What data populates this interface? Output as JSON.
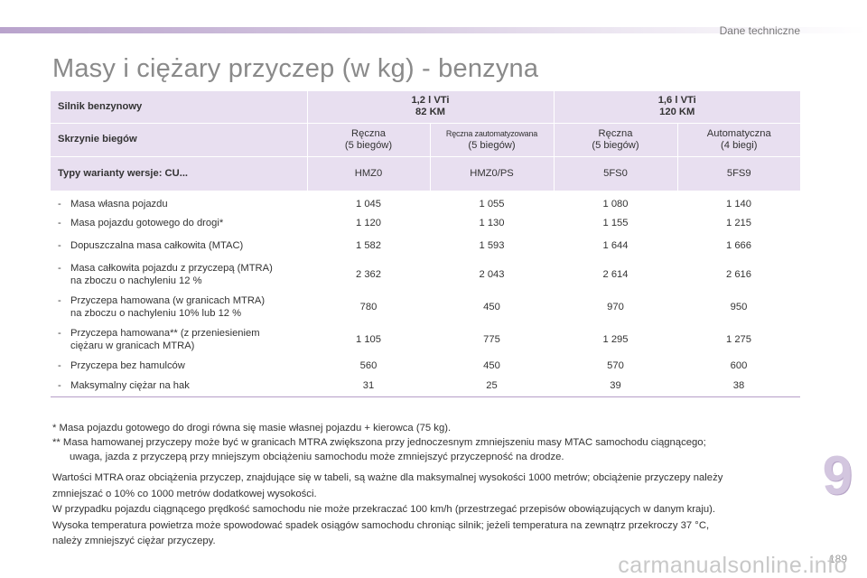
{
  "header": {
    "section": "Dane techniczne"
  },
  "title": "Masy i ciężary przyczep (w kg) - benzyna",
  "table": {
    "engine_label": "Silnik benzynowy",
    "engines": [
      {
        "line1": "1,2 l VTi",
        "line2": "82 KM"
      },
      {
        "line1": "1,6 l VTi",
        "line2": "120 KM"
      }
    ],
    "gearbox_label": "Skrzynie biegów",
    "gearboxes": [
      {
        "line1": "Ręczna",
        "line2": "(5 biegów)"
      },
      {
        "line1": "Ręczna zautomatyzowana",
        "line2": "(5 biegów)"
      },
      {
        "line1": "Ręczna",
        "line2": "(5 biegów)"
      },
      {
        "line1": "Automatyczna",
        "line2": "(4 biegi)"
      }
    ],
    "types_label": "Typy warianty wersje: CU...",
    "types": [
      "HMZ0",
      "HMZ0/PS",
      "5FS0",
      "5FS9"
    ],
    "rows": [
      {
        "dash": "-",
        "line1": "Masa własna pojazdu",
        "line2": "",
        "values": [
          "1 045",
          "1 055",
          "1 080",
          "1 140"
        ]
      },
      {
        "dash": "-",
        "line1": "Masa pojazdu gotowego do drogi*",
        "line2": "",
        "values": [
          "1 120",
          "1 130",
          "1 155",
          "1 215"
        ]
      },
      {
        "dash": "-",
        "line1": "Dopuszczalna masa całkowita (MTAC)",
        "line2": "",
        "values": [
          "1 582",
          "1 593",
          "1 644",
          "1 666"
        ]
      },
      {
        "dash": "-",
        "line1": "Masa całkowita pojazdu z przyczepą (MTRA)",
        "line2": "na zboczu o nachyleniu 12 %",
        "values": [
          "2 362",
          "2 043",
          "2 614",
          "2 616"
        ]
      },
      {
        "dash": "-",
        "line1": "Przyczepa hamowana (w granicach MTRA)",
        "line2": "na zboczu o nachyleniu 10% lub 12 %",
        "values": [
          "780",
          "450",
          "970",
          "950"
        ]
      },
      {
        "dash": "-",
        "line1": "Przyczepa hamowana** (z przeniesieniem",
        "line2": "ciężaru w granicach MTRA)",
        "values": [
          "1 105",
          "775",
          "1 295",
          "1 275"
        ]
      },
      {
        "dash": "-",
        "line1": "Przyczepa bez hamulców",
        "line2": "",
        "values": [
          "560",
          "450",
          "570",
          "600"
        ]
      },
      {
        "dash": "-",
        "line1": "Maksymalny ciężar na hak",
        "line2": "",
        "values": [
          "31",
          "25",
          "39",
          "38"
        ]
      }
    ]
  },
  "footnotes": {
    "fn1": "* Masa pojazdu gotowego do drogi równa się masie własnej pojazdu + kierowca (75 kg).",
    "fn2_line1": "** Masa hamowanej przyczepy może być w granicach MTRA zwiększona przy jednoczesnym zmniejszeniu masy MTAC samochodu ciągnącego;",
    "fn2_line2": "uwaga, jazda z przyczepą przy mniejszym obciążeniu samochodu może zmniejszyć przyczepność na drodze."
  },
  "notes": {
    "p1_line1": "Wartości MTRA oraz obciążenia przyczep, znajdujące się w tabeli, są ważne dla maksymalnej wysokości 1000 metrów; obciążenie przyczepy należy",
    "p1_line2": "zmniejszać o 10% co 1000 metrów dodatkowej wysokości.",
    "p2": "W przypadku pojazdu ciągnącego prędkość samochodu nie może przekraczać 100 km/h (przestrzegać przepisów obowiązujących w danym kraju).",
    "p3_line1": "Wysoka temperatura powietrza może spowodować spadek osiągów samochodu chroniąc silnik; jeżeli temperatura na zewnątrz przekroczy 37 °C,",
    "p3_line2": "należy zmniejszyć ciężar przyczepy."
  },
  "chapter": "9",
  "page_number": "189",
  "watermark": "carmanualsonline.info"
}
